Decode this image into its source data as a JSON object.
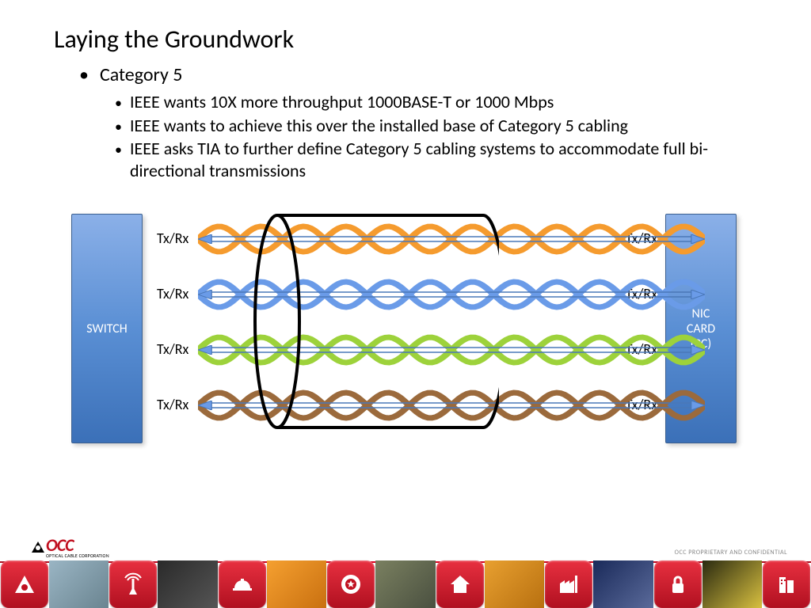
{
  "title": "Laying the Groundwork",
  "bullet_l1": "Category 5",
  "bullets_l2": [
    "IEEE wants 10X more throughput 1000BASE-T or 1000 Mbps",
    "IEEE wants to achieve this over the installed base of Category 5 cabling",
    "IEEE asks TIA to further define Category 5 cabling systems to accommodate full bi-directional transmissions"
  ],
  "diagram": {
    "left_box": "SWITCH",
    "right_box": "NIC\nCARD\n(PC)",
    "box_gradient": [
      "#8bb0e8",
      "#5a8fd4",
      "#3b70b8"
    ],
    "box_text_color": "#ffffff",
    "pair_label": "Tx/Rx",
    "pairs": [
      {
        "color": "#f59b2e"
      },
      {
        "color": "#6a9be8"
      },
      {
        "color": "#9dd23b"
      },
      {
        "color": "#9b6a3c"
      }
    ],
    "arrow_stroke": "#4a78b8",
    "arrow_fill": "#6a9be8",
    "cylinder_stroke": "#000000",
    "cylinder_stroke_width": 4
  },
  "footer": {
    "logo_text": "OCC",
    "logo_sub": "OPTICAL CABLE CORPORATION",
    "logo_color": "#c01020",
    "confidential": "OCC PROPRIETARY AND CONFIDENTIAL",
    "strip_icon_bg": [
      "#e83040",
      "#b01020"
    ],
    "strip": [
      {
        "type": "icon",
        "name": "triangle"
      },
      {
        "type": "img",
        "colors": [
          "#9ab5c4",
          "#6a8490"
        ]
      },
      {
        "type": "icon",
        "name": "antenna"
      },
      {
        "type": "img",
        "colors": [
          "#2a2a2a",
          "#555"
        ]
      },
      {
        "type": "icon",
        "name": "hardhat"
      },
      {
        "type": "img",
        "colors": [
          "#f5a030",
          "#c97010"
        ]
      },
      {
        "type": "icon",
        "name": "roundel"
      },
      {
        "type": "img",
        "colors": [
          "#7a8060",
          "#4a5040"
        ]
      },
      {
        "type": "icon",
        "name": "house"
      },
      {
        "type": "img",
        "colors": [
          "#e8a030",
          "#b87010"
        ]
      },
      {
        "type": "icon",
        "name": "factory"
      },
      {
        "type": "img",
        "colors": [
          "#1a2a5a",
          "#5a6a9a"
        ]
      },
      {
        "type": "icon",
        "name": "lock"
      },
      {
        "type": "img",
        "colors": [
          "#2a2a10",
          "#d8c040"
        ]
      },
      {
        "type": "icon",
        "name": "building"
      }
    ]
  }
}
